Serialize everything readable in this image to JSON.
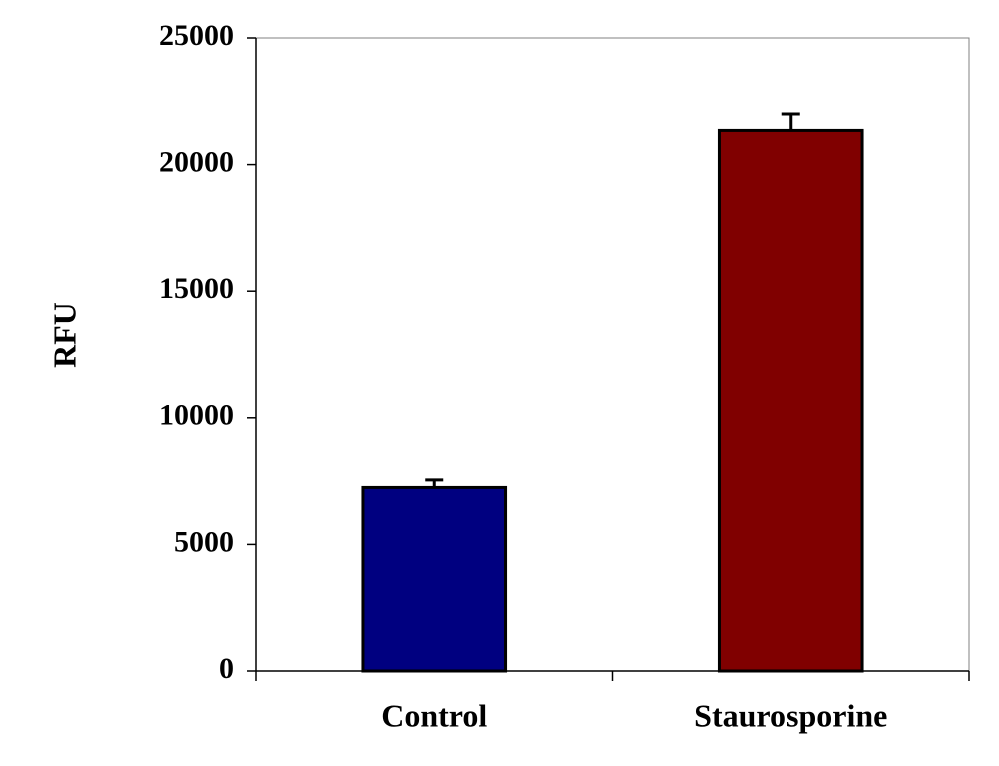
{
  "chart_data": {
    "type": "bar",
    "ylabel": "RFU",
    "categories": [
      "Control",
      "Staurosporine"
    ],
    "values": [
      7250,
      21350
    ],
    "errors": [
      300,
      650
    ],
    "colors": [
      "#000080",
      "#800000"
    ],
    "ylim": [
      0,
      25000
    ],
    "yticks": [
      0,
      5000,
      10000,
      15000,
      20000,
      25000
    ],
    "grid": false
  }
}
